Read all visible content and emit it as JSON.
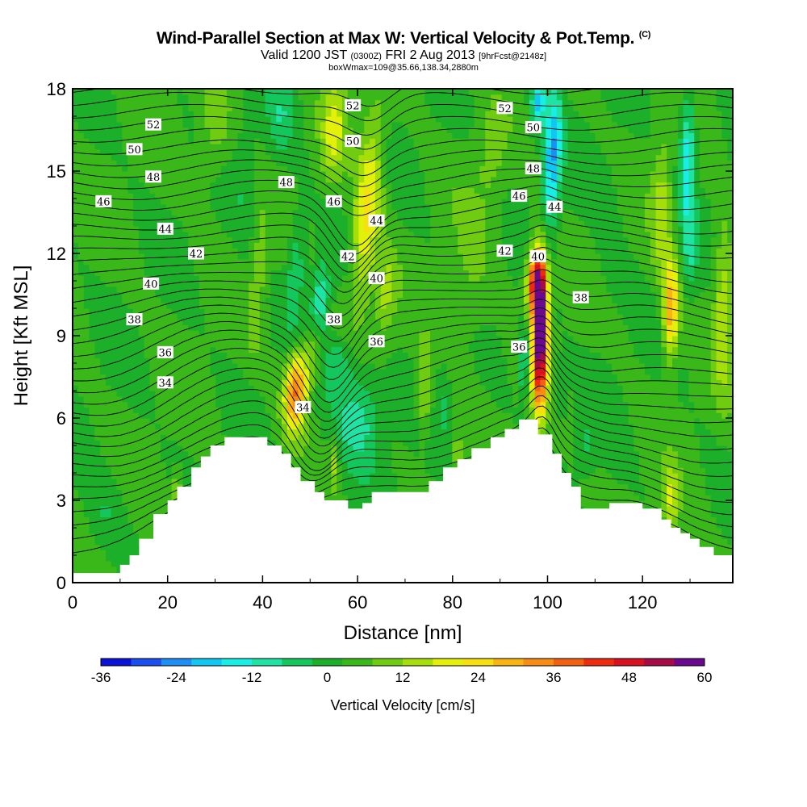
{
  "chart_data": {
    "type": "heatmap",
    "title": "Wind-Parallel Section at Max W: Vertical Velocity & Pot.Temp.",
    "title_mark": "(C)",
    "subtitle": {
      "prefix": "Valid 1200 JST",
      "utc": "(0300Z)",
      "date": "FRI 2 Aug 2013",
      "fcst": "[9hrFcst@2148z]"
    },
    "subtitle2": "boxWmax=109@35.66,138.34,2880m",
    "xlabel": "Distance [nm]",
    "ylabel": "Height [Kft MSL]",
    "xlim": [
      0,
      139
    ],
    "ylim": [
      0,
      18
    ],
    "xticks": [
      "0",
      "20",
      "40",
      "60",
      "80",
      "100",
      "120"
    ],
    "yticks": [
      "0",
      "3",
      "6",
      "9",
      "12",
      "15",
      "18"
    ],
    "colorbar": {
      "label": "Vertical Velocity [cm/s]",
      "ticks": [
        "-36",
        "-24",
        "-12",
        "0",
        "12",
        "24",
        "36",
        "48",
        "60"
      ],
      "colors": [
        "#0b12d8",
        "#1a4ef0",
        "#1d8ef5",
        "#10c6f2",
        "#18eee4",
        "#1ee3a3",
        "#14c75c",
        "#1cb02a",
        "#3ab81a",
        "#6fcc10",
        "#a6de0a",
        "#e2f00a",
        "#f8df10",
        "#f8b512",
        "#f88c14",
        "#f46012",
        "#ee2a10",
        "#d81020",
        "#a60a48",
        "#6a0890"
      ]
    },
    "terrain": [
      [
        0,
        0.35
      ],
      [
        10,
        0.35
      ],
      [
        10,
        0.65
      ],
      [
        12,
        0.65
      ],
      [
        12,
        1.0
      ],
      [
        14,
        1.0
      ],
      [
        14,
        1.6
      ],
      [
        17,
        1.6
      ],
      [
        17,
        2.5
      ],
      [
        20,
        2.5
      ],
      [
        20,
        3.0
      ],
      [
        22,
        3.0
      ],
      [
        22,
        3.5
      ],
      [
        25,
        3.5
      ],
      [
        25,
        4.2
      ],
      [
        27,
        4.2
      ],
      [
        27,
        4.6
      ],
      [
        29,
        4.6
      ],
      [
        29,
        5.0
      ],
      [
        32,
        5.0
      ],
      [
        32,
        5.3
      ],
      [
        41,
        5.3
      ],
      [
        41,
        5.0
      ],
      [
        44,
        5.0
      ],
      [
        44,
        4.7
      ],
      [
        46,
        4.7
      ],
      [
        46,
        4.2
      ],
      [
        48,
        4.2
      ],
      [
        48,
        3.7
      ],
      [
        51,
        3.7
      ],
      [
        51,
        3.3
      ],
      [
        53,
        3.3
      ],
      [
        53,
        3.0
      ],
      [
        58,
        3.0
      ],
      [
        58,
        2.7
      ],
      [
        61,
        2.7
      ],
      [
        61,
        2.9
      ],
      [
        63,
        2.9
      ],
      [
        63,
        3.3
      ],
      [
        75,
        3.3
      ],
      [
        75,
        3.7
      ],
      [
        78,
        3.7
      ],
      [
        78,
        4.2
      ],
      [
        81,
        4.2
      ],
      [
        81,
        4.5
      ],
      [
        84,
        4.5
      ],
      [
        84,
        4.9
      ],
      [
        88,
        4.9
      ],
      [
        88,
        5.3
      ],
      [
        91,
        5.3
      ],
      [
        91,
        5.6
      ],
      [
        94,
        5.6
      ],
      [
        94,
        5.95
      ],
      [
        98,
        5.95
      ],
      [
        98,
        5.4
      ],
      [
        101,
        5.4
      ],
      [
        101,
        4.7
      ],
      [
        103,
        4.7
      ],
      [
        103,
        4.0
      ],
      [
        105,
        4.0
      ],
      [
        105,
        3.5
      ],
      [
        107,
        3.5
      ],
      [
        107,
        2.7
      ],
      [
        113,
        2.7
      ],
      [
        113,
        2.9
      ],
      [
        120,
        2.9
      ],
      [
        120,
        2.7
      ],
      [
        124,
        2.7
      ],
      [
        124,
        2.3
      ],
      [
        126,
        2.3
      ],
      [
        126,
        2.0
      ],
      [
        128,
        2.0
      ],
      [
        128,
        1.8
      ],
      [
        130,
        1.8
      ],
      [
        130,
        1.6
      ],
      [
        132,
        1.6
      ],
      [
        132,
        1.3
      ],
      [
        135,
        1.3
      ],
      [
        135,
        1.0
      ],
      [
        139,
        1.0
      ]
    ],
    "w_field": [
      {
        "x": 47,
        "y": 7.0,
        "sx": 2.4,
        "sy": 1.4,
        "tilt": 0.35,
        "w": 34
      },
      {
        "x": 51,
        "y": 8.5,
        "sx": 1.8,
        "sy": 1.2,
        "tilt": 0.4,
        "w": 14
      },
      {
        "x": 62,
        "y": 13.5,
        "sx": 2.8,
        "sy": 3.5,
        "tilt": 0.45,
        "w": 20
      },
      {
        "x": 55,
        "y": 16.5,
        "sx": 2.5,
        "sy": 1.8,
        "tilt": 0.3,
        "w": 14
      },
      {
        "x": 66,
        "y": 10.5,
        "sx": 2.0,
        "sy": 1.6,
        "tilt": 0.3,
        "w": 10
      },
      {
        "x": 52,
        "y": 10.0,
        "sx": 1.8,
        "sy": 1.6,
        "tilt": 0.35,
        "w": -16
      },
      {
        "x": 47,
        "y": 11.5,
        "sx": 1.8,
        "sy": 2.2,
        "tilt": 0.35,
        "w": -10
      },
      {
        "x": 60,
        "y": 6.0,
        "sx": 5.5,
        "sy": 1.8,
        "tilt": 0.0,
        "w": -14
      },
      {
        "x": 56,
        "y": 8.0,
        "sx": 3.5,
        "sy": 1.0,
        "tilt": 0.0,
        "w": -9
      },
      {
        "x": 44,
        "y": 17.0,
        "sx": 3.0,
        "sy": 1.6,
        "tilt": 0.3,
        "w": -8
      },
      {
        "x": 98.5,
        "y": 9.0,
        "sx": 1.6,
        "sy": 2.6,
        "tilt": 0.08,
        "w": 60
      },
      {
        "x": 97.5,
        "y": 11.0,
        "sx": 1.8,
        "sy": 1.2,
        "tilt": 0.15,
        "w": 40
      },
      {
        "x": 95,
        "y": 8.2,
        "sx": 1.0,
        "sy": 1.3,
        "tilt": 0.0,
        "w": -16
      },
      {
        "x": 101,
        "y": 15.5,
        "sx": 1.8,
        "sy": 2.6,
        "tilt": 0.25,
        "w": -24
      },
      {
        "x": 98,
        "y": 17.5,
        "sx": 1.6,
        "sy": 1.0,
        "tilt": 0.2,
        "w": -20
      },
      {
        "x": 103,
        "y": 7.0,
        "sx": 1.2,
        "sy": 1.0,
        "tilt": 0.0,
        "w": -8
      },
      {
        "x": 108,
        "y": 5.0,
        "sx": 2.0,
        "sy": 1.0,
        "tilt": 0.0,
        "w": -6
      },
      {
        "x": 126,
        "y": 10.0,
        "sx": 1.6,
        "sy": 1.8,
        "tilt": 0.08,
        "w": 28
      },
      {
        "x": 124,
        "y": 13.5,
        "sx": 2.0,
        "sy": 2.5,
        "tilt": 0.08,
        "w": 12
      },
      {
        "x": 129.5,
        "y": 15.5,
        "sx": 1.6,
        "sy": 2.5,
        "tilt": 0.05,
        "w": -20
      },
      {
        "x": 130,
        "y": 12.0,
        "sx": 1.5,
        "sy": 1.5,
        "tilt": 0.05,
        "w": -8
      },
      {
        "x": 126,
        "y": 3.0,
        "sx": 1.6,
        "sy": 1.2,
        "tilt": 0.0,
        "w": 14
      },
      {
        "x": 137,
        "y": 10.0,
        "sx": 2.0,
        "sy": 3.0,
        "tilt": 0.0,
        "w": 14
      },
      {
        "x": 74,
        "y": 7.0,
        "sx": 1.6,
        "sy": 1.6,
        "tilt": 0.0,
        "w": 12
      },
      {
        "x": 78,
        "y": 6.5,
        "sx": 1.5,
        "sy": 1.4,
        "tilt": 0.0,
        "w": -5
      },
      {
        "x": 81,
        "y": 4.8,
        "sx": 1.0,
        "sy": 0.6,
        "tilt": 0.0,
        "w": 10
      },
      {
        "x": 55,
        "y": 4.5,
        "sx": 1.0,
        "sy": 1.0,
        "tilt": 0.0,
        "w": 12
      },
      {
        "x": 39,
        "y": 11.0,
        "sx": 1.5,
        "sy": 2.5,
        "tilt": 0.3,
        "w": 8
      },
      {
        "x": 30,
        "y": 16.5,
        "sx": 3.5,
        "sy": 1.8,
        "tilt": 0.2,
        "w": 8
      },
      {
        "x": 22,
        "y": 3.2,
        "sx": 1.0,
        "sy": 0.8,
        "tilt": 0.0,
        "w": 14
      },
      {
        "x": 7,
        "y": 2.5,
        "sx": 4.0,
        "sy": 1.5,
        "tilt": 0.0,
        "w": -5
      },
      {
        "x": 36,
        "y": 14.5,
        "sx": 2.5,
        "sy": 2.5,
        "tilt": 0.2,
        "w": -4
      },
      {
        "x": 84,
        "y": 11.0,
        "sx": 4.0,
        "sy": 3.0,
        "tilt": 0.0,
        "w": 5
      },
      {
        "x": 113,
        "y": 12.5,
        "sx": 3.5,
        "sy": 3.5,
        "tilt": 0.0,
        "w": -3
      },
      {
        "x": 88,
        "y": 15.5,
        "sx": 3.0,
        "sy": 1.8,
        "tilt": 0.0,
        "w": 6
      }
    ],
    "theta_labels": [
      {
        "text": "52",
        "x": 17,
        "y": 16.7
      },
      {
        "text": "50",
        "x": 13,
        "y": 15.8
      },
      {
        "text": "48",
        "x": 17,
        "y": 14.8
      },
      {
        "text": "46",
        "x": 6.5,
        "y": 13.9
      },
      {
        "text": "44",
        "x": 19.5,
        "y": 12.9
      },
      {
        "text": "42",
        "x": 26,
        "y": 12.0
      },
      {
        "text": "40",
        "x": 16.5,
        "y": 10.9
      },
      {
        "text": "38",
        "x": 13,
        "y": 9.6
      },
      {
        "text": "36",
        "x": 19.5,
        "y": 8.4
      },
      {
        "text": "34",
        "x": 19.5,
        "y": 7.3
      },
      {
        "text": "52",
        "x": 59,
        "y": 17.4
      },
      {
        "text": "50",
        "x": 59,
        "y": 16.1
      },
      {
        "text": "48",
        "x": 45,
        "y": 14.6
      },
      {
        "text": "46",
        "x": 55,
        "y": 13.9
      },
      {
        "text": "44",
        "x": 64,
        "y": 13.2
      },
      {
        "text": "42",
        "x": 58,
        "y": 11.9
      },
      {
        "text": "40",
        "x": 64,
        "y": 11.1
      },
      {
        "text": "38",
        "x": 55,
        "y": 9.6
      },
      {
        "text": "36",
        "x": 64,
        "y": 8.8
      },
      {
        "text": "34",
        "x": 48.5,
        "y": 6.4
      },
      {
        "text": "52",
        "x": 91,
        "y": 17.3
      },
      {
        "text": "50",
        "x": 97,
        "y": 16.6
      },
      {
        "text": "48",
        "x": 97,
        "y": 15.1
      },
      {
        "text": "46",
        "x": 94,
        "y": 14.1
      },
      {
        "text": "44",
        "x": 101.5,
        "y": 13.7
      },
      {
        "text": "42",
        "x": 91,
        "y": 12.1
      },
      {
        "text": "40",
        "x": 98,
        "y": 11.9
      },
      {
        "text": "38",
        "x": 107,
        "y": 10.4
      },
      {
        "text": "36",
        "x": 94,
        "y": 8.6
      }
    ]
  }
}
